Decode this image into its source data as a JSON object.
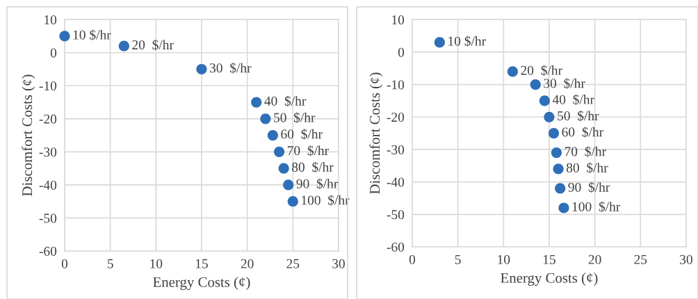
{
  "chart_data": [
    {
      "type": "scatter",
      "xlabel": "Energy Costs (¢)",
      "ylabel": "Discomfort Costs (¢)",
      "x": [
        0,
        6.5,
        15,
        21,
        22,
        22.8,
        23.5,
        24,
        24.5,
        25
      ],
      "values": [
        5,
        2,
        -5,
        -15,
        -20,
        -25,
        -30,
        -35,
        -40,
        -45
      ],
      "color": "#2f6fb8",
      "marker": "circle",
      "xlim": [
        0,
        30
      ],
      "xticks": [
        0,
        5,
        10,
        15,
        20,
        25,
        30
      ],
      "ylim": [
        -60,
        10
      ],
      "yticks": [
        -60,
        -50,
        -40,
        -30,
        -20,
        -10,
        0,
        10
      ],
      "grid": true,
      "annotations": [
        {
          "text": "10 $/hr",
          "x": 0,
          "y": 5
        },
        {
          "text": "20  $/hr",
          "x": 6.5,
          "y": 2
        },
        {
          "text": "30  $/hr",
          "x": 15,
          "y": -5
        },
        {
          "text": "40  $/hr",
          "x": 21,
          "y": -15
        },
        {
          "text": "50  $/hr",
          "x": 22,
          "y": -20
        },
        {
          "text": "60  $/hr",
          "x": 22.8,
          "y": -25
        },
        {
          "text": "70  $/hr",
          "x": 23.5,
          "y": -30
        },
        {
          "text": "80  $/hr",
          "x": 24,
          "y": -35
        },
        {
          "text": "90  $/hr",
          "x": 24.5,
          "y": -40
        },
        {
          "text": "100  $/hr",
          "x": 25,
          "y": -45
        }
      ]
    },
    {
      "type": "scatter",
      "xlabel": "Energy Costs (¢)",
      "ylabel": "Discomfort Costs (¢)",
      "x": [
        3,
        11,
        13.5,
        14.5,
        15,
        15.5,
        15.8,
        16,
        16.2,
        16.6
      ],
      "values": [
        3,
        -6,
        -10,
        -15,
        -20,
        -25,
        -31,
        -36,
        -42,
        -48
      ],
      "color": "#2f6fb8",
      "marker": "circle",
      "xlim": [
        0,
        30
      ],
      "xticks": [
        0,
        5,
        10,
        15,
        20,
        25,
        30
      ],
      "ylim": [
        -60,
        10
      ],
      "yticks": [
        -60,
        -50,
        -40,
        -30,
        -20,
        -10,
        0,
        10
      ],
      "grid": true,
      "annotations": [
        {
          "text": "10 $/hr",
          "x": 3,
          "y": 3
        },
        {
          "text": "20  $/hr",
          "x": 11,
          "y": -6
        },
        {
          "text": "30  $/hr",
          "x": 13.5,
          "y": -10
        },
        {
          "text": "40  $/hr",
          "x": 14.5,
          "y": -15
        },
        {
          "text": "50  $/hr",
          "x": 15,
          "y": -20
        },
        {
          "text": "60  $/hr",
          "x": 15.5,
          "y": -25
        },
        {
          "text": "70  $/hr",
          "x": 15.8,
          "y": -31
        },
        {
          "text": "80  $/hr",
          "x": 16,
          "y": -36
        },
        {
          "text": "90  $/hr",
          "x": 16.2,
          "y": -42
        },
        {
          "text": "100  $/hr",
          "x": 16.6,
          "y": -48
        }
      ]
    }
  ]
}
